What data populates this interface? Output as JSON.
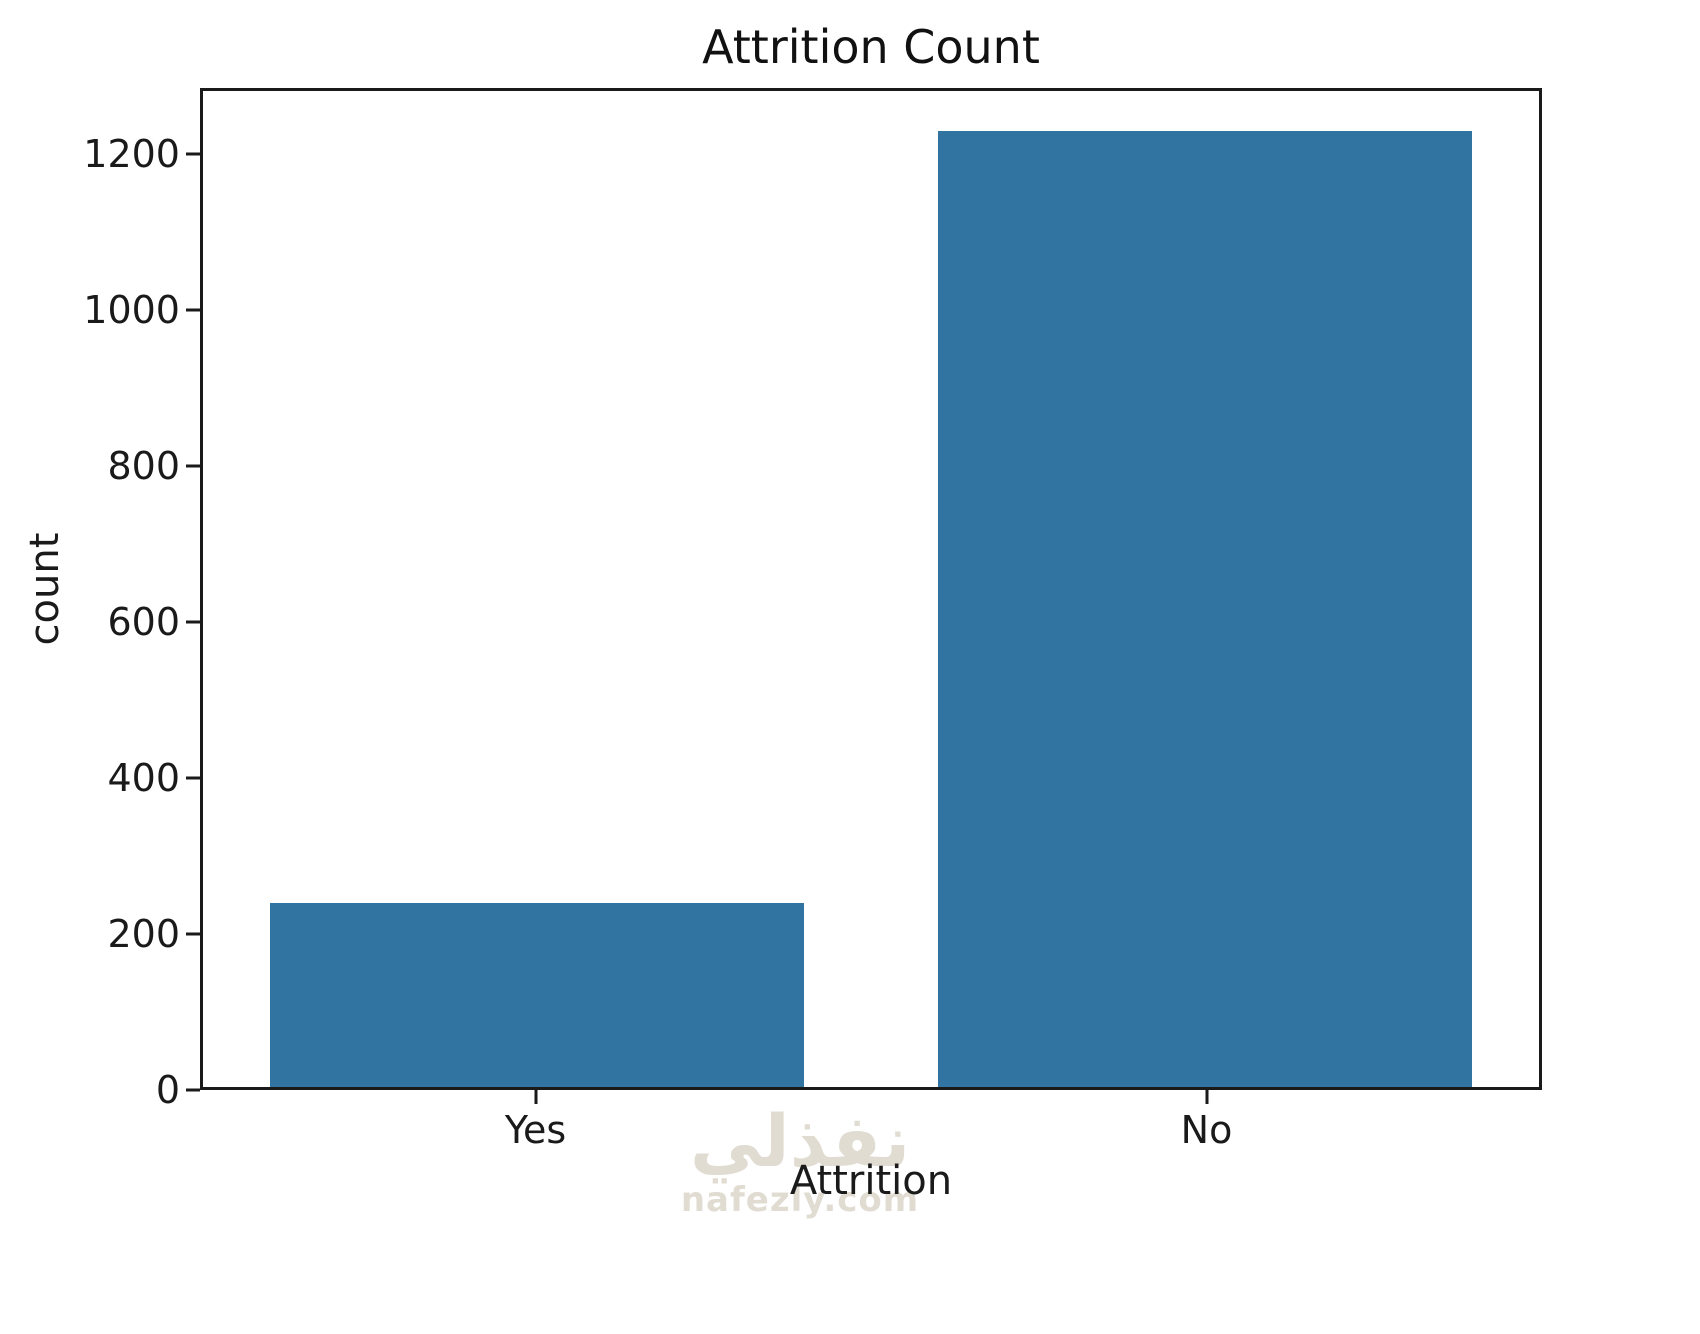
{
  "chart_data": {
    "type": "bar",
    "title": "Attrition Count",
    "xlabel": "Attrition",
    "ylabel": "count",
    "categories": [
      "Yes",
      "No"
    ],
    "values": [
      237,
      1233
    ],
    "ylim": [
      0,
      1285
    ],
    "yticks": [
      0,
      200,
      400,
      600,
      800,
      1000,
      1200
    ],
    "bar_color": "#3274a1",
    "grid": false,
    "legend_position": "none"
  },
  "watermark": {
    "arabic": "نفذلي",
    "text": "nafezly.com"
  }
}
